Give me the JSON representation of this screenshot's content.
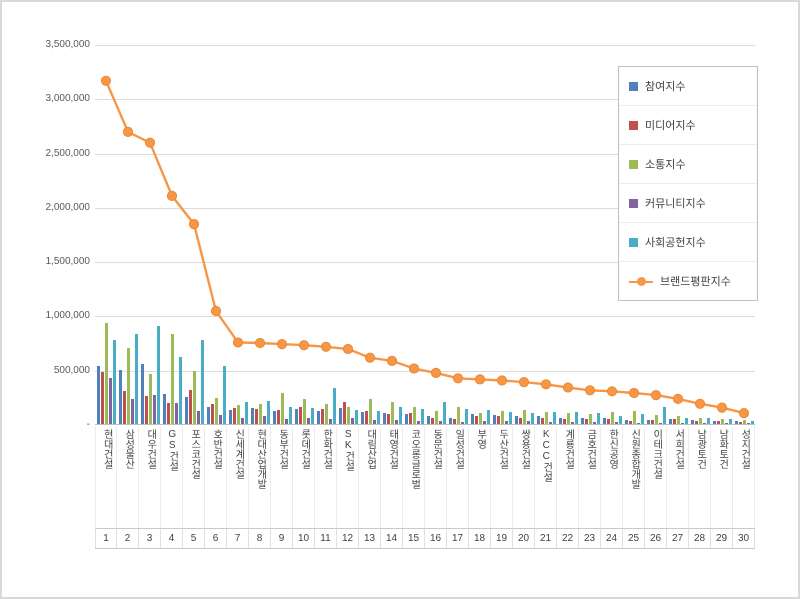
{
  "chart_data": {
    "type": "bar",
    "title": "",
    "xlabel": "",
    "ylabel": "",
    "ylim": [
      0,
      3500000
    ],
    "ytick_interval": 500000,
    "grid": true,
    "legend_position": "top-right",
    "ytick_labels_top_to_bottom": [
      "3,500,000",
      "3,000,000",
      "2,500,000",
      "2,000,000",
      "1,500,000",
      "1,000,000",
      "500,000",
      "-"
    ],
    "categories": [
      "현대건설",
      "삼성물산",
      "대우건설",
      "GS건설",
      "포스코건설",
      "호반건설",
      "신세계건설",
      "현대산업개발",
      "동부건설",
      "롯데건설",
      "한화건설",
      "SK건설",
      "대림산업",
      "태영건설",
      "코오롱글로벌",
      "동문건설",
      "일성건설",
      "부영",
      "두산건설",
      "쌍용건설",
      "KCC건설",
      "계룡건설",
      "금호건설",
      "한신공영",
      "신원종합개발",
      "이테크건설",
      "서희건설",
      "남광토건",
      "남화토건",
      "성지건설"
    ],
    "rank_labels": [
      "1",
      "2",
      "3",
      "4",
      "5",
      "6",
      "7",
      "8",
      "9",
      "10",
      "11",
      "12",
      "13",
      "14",
      "15",
      "16",
      "17",
      "18",
      "19",
      "20",
      "21",
      "22",
      "23",
      "24",
      "25",
      "26",
      "27",
      "28",
      "29",
      "30"
    ],
    "series": [
      {
        "name": "참여지수",
        "type": "bar",
        "color": "#4F81BD",
        "values": [
          530000,
          500000,
          550000,
          280000,
          250000,
          160000,
          130000,
          150000,
          120000,
          140000,
          120000,
          150000,
          110000,
          100000,
          90000,
          70000,
          60000,
          90000,
          80000,
          70000,
          70000,
          60000,
          60000,
          60000,
          40000,
          40000,
          50000,
          35000,
          30000,
          25000
        ]
      },
      {
        "name": "미디어지수",
        "type": "bar",
        "color": "#C0504D",
        "values": [
          480000,
          300000,
          260000,
          195000,
          310000,
          185000,
          150000,
          140000,
          130000,
          160000,
          140000,
          200000,
          120000,
          90000,
          100000,
          60000,
          50000,
          70000,
          70000,
          60000,
          60000,
          50000,
          50000,
          50000,
          30000,
          35000,
          45000,
          30000,
          25000,
          20000
        ]
      },
      {
        "name": "소통지수",
        "type": "bar",
        "color": "#9BBB59",
        "values": [
          930000,
          700000,
          460000,
          830000,
          490000,
          240000,
          175000,
          185000,
          290000,
          230000,
          180000,
          160000,
          230000,
          200000,
          160000,
          120000,
          160000,
          100000,
          120000,
          130000,
          110000,
          100000,
          90000,
          110000,
          120000,
          80000,
          70000,
          60000,
          50000,
          40000
        ]
      },
      {
        "name": "커뮤니티지수",
        "type": "bar",
        "color": "#8064A2",
        "values": [
          420000,
          230000,
          270000,
          190000,
          120000,
          80000,
          60000,
          70000,
          50000,
          60000,
          50000,
          60000,
          40000,
          35000,
          30000,
          25000,
          20000,
          25000,
          30000,
          25000,
          20000,
          20000,
          15000,
          15000,
          10000,
          12000,
          10000,
          8000,
          8000,
          5000
        ]
      },
      {
        "name": "사회공헌지수",
        "type": "bar",
        "color": "#4BACC6",
        "values": [
          770000,
          830000,
          900000,
          620000,
          770000,
          530000,
          200000,
          210000,
          160000,
          150000,
          330000,
          130000,
          120000,
          160000,
          140000,
          200000,
          140000,
          130000,
          110000,
          100000,
          110000,
          110000,
          100000,
          70000,
          90000,
          160000,
          60000,
          60000,
          45000,
          30000
        ]
      },
      {
        "name": "브랜드평판지수",
        "type": "line",
        "color": "#F79646",
        "values": [
          3170000,
          2700000,
          2600000,
          2110000,
          1850000,
          1050000,
          760000,
          755000,
          745000,
          735000,
          720000,
          700000,
          620000,
          590000,
          520000,
          480000,
          430000,
          420000,
          410000,
          395000,
          375000,
          345000,
          320000,
          310000,
          295000,
          275000,
          240000,
          195000,
          160000,
          110000
        ]
      }
    ]
  }
}
